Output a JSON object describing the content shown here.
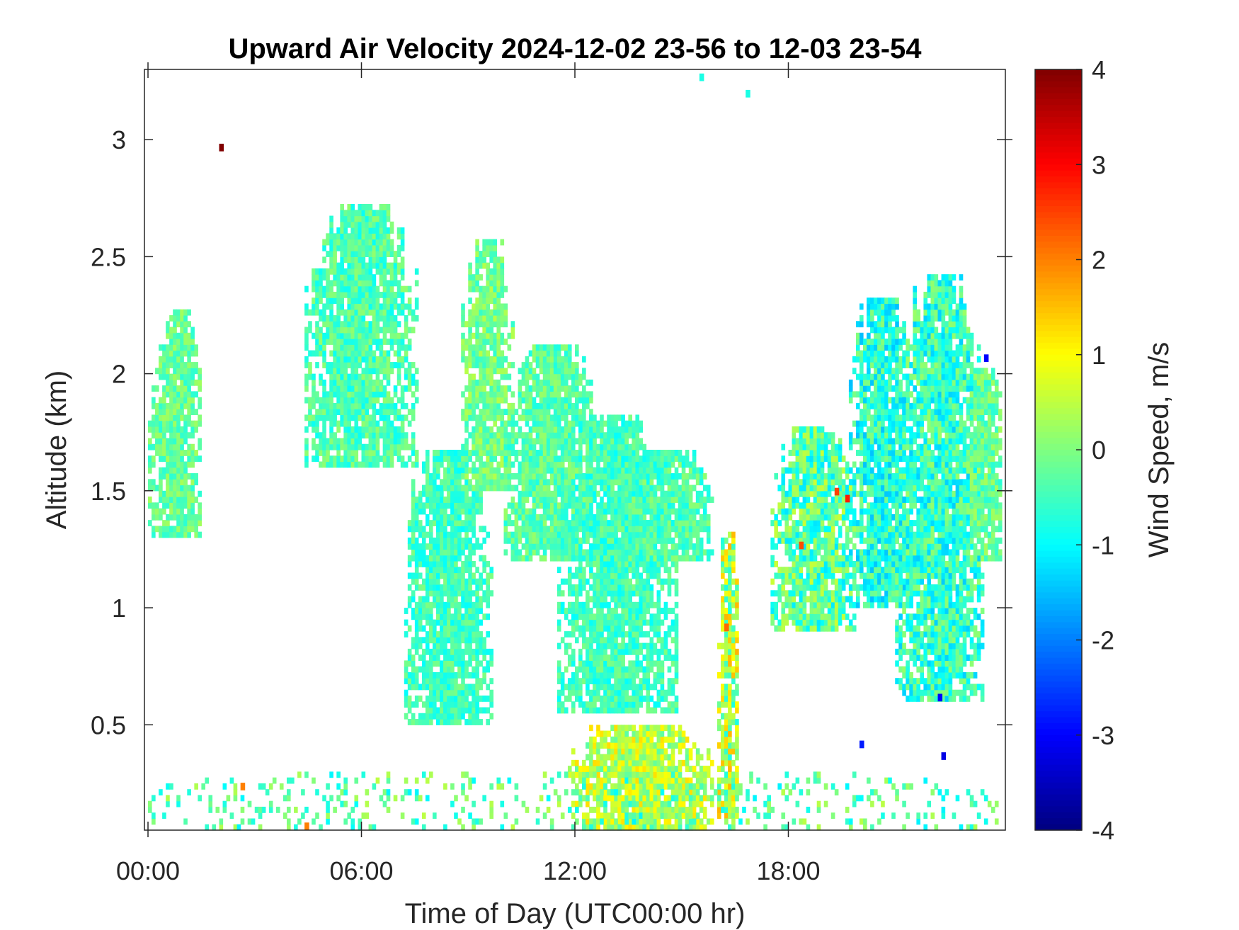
{
  "chart_data": {
    "type": "heatmap",
    "title": "Upward Air Velocity 2024-12-02 23-56 to 12-03 23-54",
    "xlabel": "Time of Day (UTC00:00 hr)",
    "ylabel": "Altitude (km)",
    "colorbar_label": "Wind Speed, m/s",
    "colormap": "jet",
    "xlim_hours": [
      -0.1,
      24.1
    ],
    "ylim_km": [
      0.05,
      3.3
    ],
    "clim": [
      -4,
      4
    ],
    "x_ticks": [
      {
        "hour": 0,
        "label": "00:00"
      },
      {
        "hour": 6,
        "label": "06:00"
      },
      {
        "hour": 12,
        "label": "12:00"
      },
      {
        "hour": 18,
        "label": "18:00"
      }
    ],
    "y_ticks": [
      {
        "km": 0.5,
        "label": "0.5"
      },
      {
        "km": 1,
        "label": "1"
      },
      {
        "km": 1.5,
        "label": "1.5"
      },
      {
        "km": 2,
        "label": "2"
      },
      {
        "km": 2.5,
        "label": "2.5"
      },
      {
        "km": 3,
        "label": "3"
      }
    ],
    "colorbar_ticks": [
      {
        "value": 4,
        "label": "4"
      },
      {
        "value": 3,
        "label": "3"
      },
      {
        "value": 2,
        "label": "2"
      },
      {
        "value": 1,
        "label": "1"
      },
      {
        "value": 0,
        "label": "0"
      },
      {
        "value": -1,
        "label": "-1"
      },
      {
        "value": -2,
        "label": "-2"
      },
      {
        "value": -3,
        "label": "-3"
      },
      {
        "value": -4,
        "label": "-4"
      }
    ],
    "regions": [
      {
        "t_start": 0,
        "t_end": 1.5,
        "alt_low": 1.3,
        "alt_high": 2.25,
        "mean": -0.2,
        "spread": 0.5
      },
      {
        "t_start": 4.4,
        "t_end": 7.5,
        "alt_low": 1.6,
        "alt_high": 2.7,
        "mean": -0.4,
        "spread": 0.55
      },
      {
        "t_start": 7.2,
        "t_end": 9.6,
        "alt_low": 0.5,
        "alt_high": 1.65,
        "mean": -0.5,
        "spread": 0.5
      },
      {
        "t_start": 8.8,
        "t_end": 10.2,
        "alt_low": 1.5,
        "alt_high": 2.55,
        "mean": -0.1,
        "spread": 0.55
      },
      {
        "t_start": 10.0,
        "t_end": 12.5,
        "alt_low": 1.2,
        "alt_high": 2.1,
        "mean": -0.3,
        "spread": 0.5
      },
      {
        "t_start": 11.5,
        "t_end": 14.8,
        "alt_low": 0.55,
        "alt_high": 1.8,
        "mean": -0.5,
        "spread": 0.5
      },
      {
        "t_start": 13.5,
        "t_end": 15.8,
        "alt_low": 1.2,
        "alt_high": 1.65,
        "mean": -0.4,
        "spread": 0.55
      },
      {
        "t_start": 11.8,
        "t_end": 15.8,
        "alt_low": 0.05,
        "alt_high": 0.5,
        "mean": 0.5,
        "spread": 0.8
      },
      {
        "t_start": 16.0,
        "t_end": 16.6,
        "alt_low": 0.1,
        "alt_high": 1.3,
        "mean": 0.4,
        "spread": 1.2
      },
      {
        "t_start": 17.5,
        "t_end": 19.9,
        "alt_low": 0.9,
        "alt_high": 1.75,
        "mean": -0.3,
        "spread": 0.9
      },
      {
        "t_start": 19.7,
        "t_end": 21.5,
        "alt_low": 1.0,
        "alt_high": 2.3,
        "mean": -0.7,
        "spread": 0.8
      },
      {
        "t_start": 21.0,
        "t_end": 23.5,
        "alt_low": 0.6,
        "alt_high": 2.4,
        "mean": -0.6,
        "spread": 0.8
      },
      {
        "t_start": 23.0,
        "t_end": 24.0,
        "alt_low": 1.2,
        "alt_high": 2.0,
        "mean": -0.2,
        "spread": 0.5
      },
      {
        "t_start": 0,
        "t_end": 24.0,
        "alt_low": 0.05,
        "alt_high": 0.3,
        "mean": -0.3,
        "spread": 0.8
      }
    ],
    "notable_points": [
      {
        "hour": 2.0,
        "km": 2.95,
        "value": 4.0
      },
      {
        "hour": 15.5,
        "km": 3.25,
        "value": -0.8
      },
      {
        "hour": 16.8,
        "km": 3.18,
        "value": -0.8
      },
      {
        "hour": 19.3,
        "km": 1.48,
        "value": 2.5
      },
      {
        "hour": 19.6,
        "km": 1.45,
        "value": 2.8
      },
      {
        "hour": 18.3,
        "km": 1.25,
        "value": 2.4
      },
      {
        "hour": 16.2,
        "km": 0.9,
        "value": 2.2
      },
      {
        "hour": 22.2,
        "km": 0.6,
        "value": -3.0
      },
      {
        "hour": 22.3,
        "km": 0.35,
        "value": -3.2
      },
      {
        "hour": 20.0,
        "km": 0.4,
        "value": -2.8
      },
      {
        "hour": 4.4,
        "km": 0.05,
        "value": 2.0
      },
      {
        "hour": 2.6,
        "km": 0.22,
        "value": 2.0
      },
      {
        "hour": 23.5,
        "km": 2.05,
        "value": -3.0
      }
    ]
  }
}
